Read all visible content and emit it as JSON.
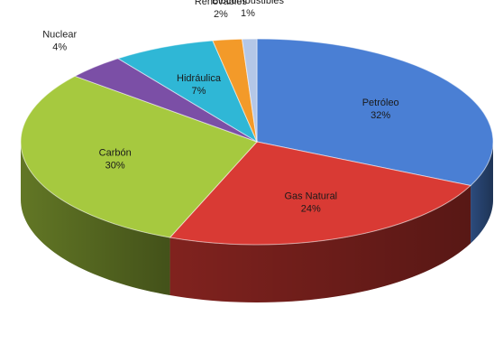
{
  "chart_data": {
    "type": "pie",
    "title": "",
    "style": "3d-tilted",
    "slices": [
      {
        "label": "Petróleo",
        "pct_text": "32%",
        "value": 32,
        "color": "#4a7fd4",
        "placement": "inside"
      },
      {
        "label": "Gas Natural",
        "pct_text": "24%",
        "value": 24,
        "color": "#d93a34",
        "placement": "inside"
      },
      {
        "label": "Carbón",
        "pct_text": "30%",
        "value": 30,
        "color": "#a6c93f",
        "placement": "inside"
      },
      {
        "label": "Nuclear",
        "pct_text": "4%",
        "value": 4,
        "color": "#7b4fa6",
        "placement": "outside"
      },
      {
        "label": "Hidráulica",
        "pct_text": "7%",
        "value": 7,
        "color": "#2fb7d6",
        "placement": "inside"
      },
      {
        "label": "Renovables",
        "pct_text": "2%",
        "value": 2,
        "color": "#f39a29",
        "placement": "outside"
      },
      {
        "label": "Biocombustibles",
        "pct_text": "1%",
        "value": 1,
        "color": "#b4c7e7",
        "placement": "outside"
      }
    ]
  }
}
